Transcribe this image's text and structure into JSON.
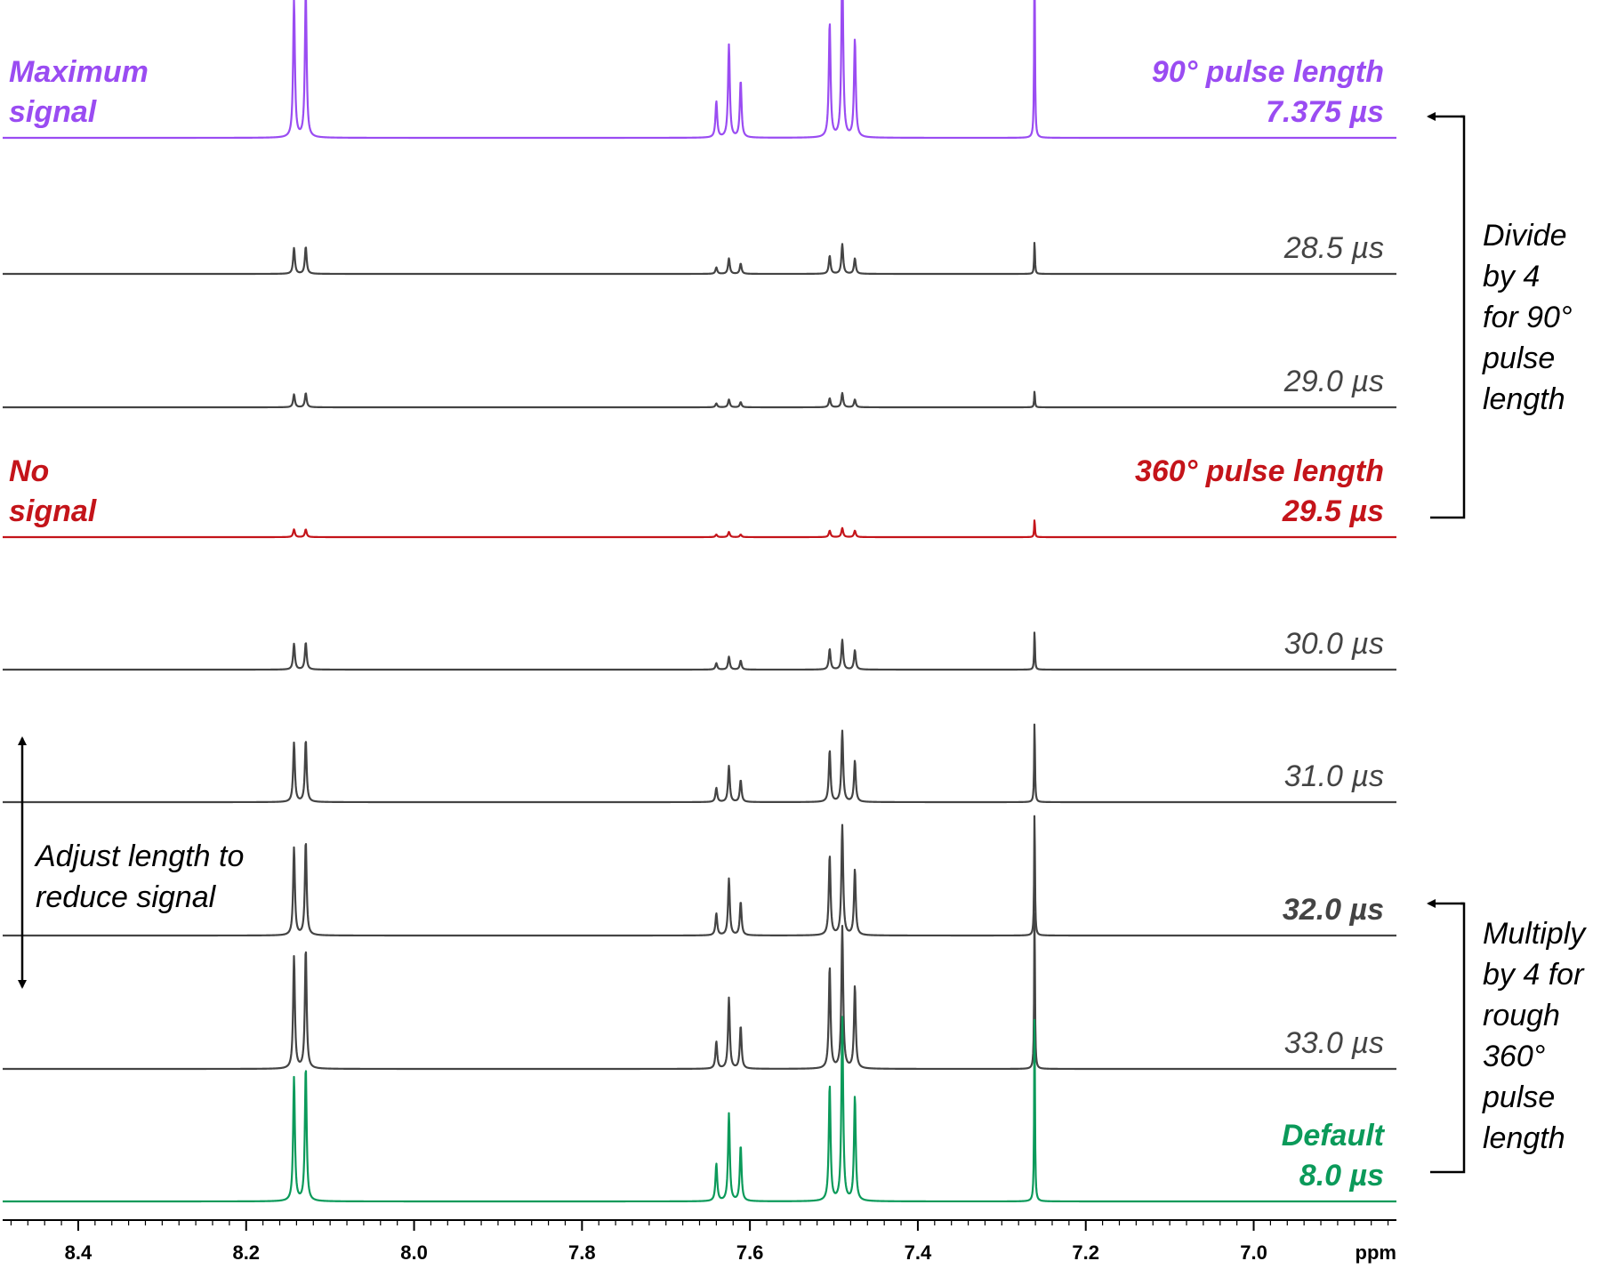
{
  "colors": {
    "purple": "#9a4cf2",
    "red": "#c4141a",
    "green": "#0b9a5a",
    "gray": "#444444",
    "black": "#000000"
  },
  "chart_data": {
    "type": "line",
    "title": "",
    "xlabel": "ppm",
    "ylabel": "",
    "xlim": [
      8.49,
      6.83
    ],
    "x_reversed": true,
    "x_ticks": [
      "8.4",
      "8.2",
      "8.0",
      "7.8",
      "7.6",
      "7.4",
      "7.2",
      "7.0"
    ],
    "grid": false,
    "peaks_ppm": [
      8.143,
      8.129,
      7.64,
      7.625,
      7.611,
      7.505,
      7.49,
      7.475,
      7.261
    ],
    "series": [
      {
        "key": "max",
        "color": "purple",
        "bold": true,
        "label_left": [
          "Maximum",
          "signal"
        ],
        "label_right": [
          "90° pulse length",
          "7.375 µs"
        ],
        "peak_heights": [
          1.07,
          1.13,
          0.28,
          0.72,
          0.44,
          0.89,
          1.38,
          0.76,
          1.5
        ]
      },
      {
        "key": "p285",
        "color": "gray",
        "bold": false,
        "label_right": [
          "28.5 µs"
        ],
        "peak_heights": [
          0.2,
          0.21,
          0.05,
          0.12,
          0.08,
          0.14,
          0.23,
          0.12,
          0.26
        ]
      },
      {
        "key": "p290",
        "color": "gray",
        "bold": false,
        "label_right": [
          "29.0 µs"
        ],
        "peak_heights": [
          0.1,
          0.11,
          0.03,
          0.06,
          0.04,
          0.07,
          0.11,
          0.06,
          0.13
        ]
      },
      {
        "key": "p295",
        "color": "red",
        "bold": true,
        "label_left": [
          "No",
          "signal"
        ],
        "label_right": [
          "360° pulse length",
          "29.5 µs"
        ],
        "peak_heights": [
          0.06,
          0.06,
          0.02,
          0.04,
          0.02,
          0.05,
          0.07,
          0.05,
          0.14
        ]
      },
      {
        "key": "p300",
        "color": "gray",
        "bold": false,
        "label_right": [
          "30.0 µs"
        ],
        "peak_heights": [
          0.2,
          0.21,
          0.05,
          0.1,
          0.07,
          0.16,
          0.23,
          0.15,
          0.31
        ]
      },
      {
        "key": "p310",
        "color": "gray",
        "bold": false,
        "label_right": [
          "31.0 µs"
        ],
        "peak_heights": [
          0.46,
          0.48,
          0.11,
          0.28,
          0.17,
          0.4,
          0.55,
          0.32,
          0.65
        ]
      },
      {
        "key": "p320",
        "color": "gray",
        "bold": false,
        "label_right_bold": true,
        "label_right": [
          "32.0 µs"
        ],
        "peak_heights": [
          0.68,
          0.73,
          0.17,
          0.44,
          0.26,
          0.62,
          0.85,
          0.51,
          1.0
        ]
      },
      {
        "key": "p330",
        "color": "gray",
        "bold": false,
        "label_right": [
          "33.0 µs"
        ],
        "peak_heights": [
          0.87,
          0.93,
          0.21,
          0.55,
          0.33,
          0.79,
          1.1,
          0.64,
          1.3
        ]
      },
      {
        "key": "def",
        "color": "green",
        "bold": true,
        "label_right": [
          "Default",
          "8.0 µs"
        ],
        "peak_heights": [
          0.96,
          1.04,
          0.29,
          0.68,
          0.43,
          0.9,
          1.42,
          0.81,
          1.52
        ]
      }
    ]
  },
  "annotations": {
    "divide_text": [
      "Divide",
      "by 4",
      "for 90°",
      "pulse",
      "length"
    ],
    "multiply_text": [
      "Multiply",
      "by 4 for",
      "rough",
      "360°",
      "pulse",
      "length"
    ],
    "adjust_text": [
      "Adjust length to",
      "reduce signal"
    ]
  }
}
